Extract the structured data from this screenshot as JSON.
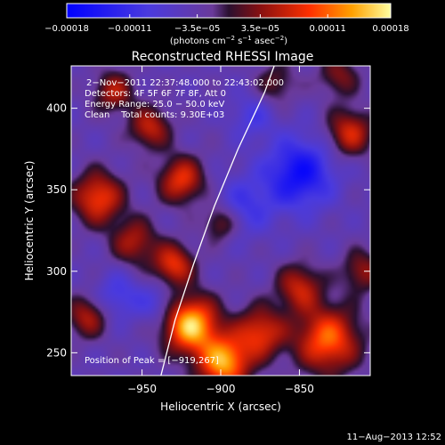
{
  "chart_data": {
    "type": "heatmap",
    "title": "Reconstructed RHESSI Image",
    "xlabel": "Heliocentric X (arcsec)",
    "ylabel": "Heliocentric Y (arcsec)",
    "xlim": [
      -995,
      -805
    ],
    "ylim": [
      236,
      426
    ],
    "x_ticks": [
      -950,
      -900,
      -850
    ],
    "x_tick_labels": [
      "−950",
      "−900",
      "−850"
    ],
    "y_ticks": [
      250,
      300,
      350,
      400
    ],
    "y_tick_labels": [
      "250",
      "300",
      "350",
      "400"
    ],
    "colorbar": {
      "min": -0.00018,
      "max": 0.00018,
      "ticks": [
        -0.00018,
        -0.00011,
        -3.5e-05,
        3.5e-05,
        0.00011,
        0.00018
      ],
      "tick_labels": [
        "−0.00018",
        "−0.00011",
        "−3.5e−05",
        "3.5e−05",
        "0.00011",
        "0.00018"
      ],
      "units_pre": "(photons cm",
      "units_sup1": "−2",
      "units_mid1": " s",
      "units_sup2": "−1",
      "units_mid2": " asec",
      "units_sup3": "−2",
      "units_post": ")"
    },
    "annotations": [
      "2−Nov−2011 22:37:48.000 to 22:43:02.000",
      "Detectors: 4F 5F 6F 7F 8F, Att 0",
      "Energy Range: 25.0 − 50.0 keV",
      "Clean    Total counts: 9.30E+03"
    ],
    "peak_label": "Position of Peak = [−919,267]",
    "peak": [
      -919,
      267
    ],
    "sources": [
      {
        "x": -919,
        "y": 267,
        "amp": 0.0002,
        "w": 12
      },
      {
        "x": -898,
        "y": 244,
        "amp": 0.00018,
        "w": 11
      },
      {
        "x": -832,
        "y": 258,
        "amp": 0.00015,
        "w": 14
      },
      {
        "x": -875,
        "y": 262,
        "amp": 0.00012,
        "w": 11
      },
      {
        "x": -850,
        "y": 290,
        "amp": 0.0001,
        "w": 10
      },
      {
        "x": -930,
        "y": 304,
        "amp": 0.00012,
        "w": 9
      },
      {
        "x": -955,
        "y": 318,
        "amp": 9e-05,
        "w": 10
      },
      {
        "x": -978,
        "y": 345,
        "amp": 0.00013,
        "w": 11
      },
      {
        "x": -925,
        "y": 356,
        "amp": 0.00012,
        "w": 10
      },
      {
        "x": -945,
        "y": 388,
        "amp": 0.0001,
        "w": 9
      },
      {
        "x": -968,
        "y": 410,
        "amp": 9e-05,
        "w": 9
      },
      {
        "x": -900,
        "y": 330,
        "amp": 8e-05,
        "w": 8
      },
      {
        "x": -818,
        "y": 385,
        "amp": 0.00011,
        "w": 10
      },
      {
        "x": -825,
        "y": 420,
        "amp": 7e-05,
        "w": 9
      },
      {
        "x": -865,
        "y": 415,
        "amp": 6e-05,
        "w": 9
      },
      {
        "x": -985,
        "y": 272,
        "amp": 9e-05,
        "w": 9
      },
      {
        "x": -810,
        "y": 300,
        "amp": 8e-05,
        "w": 9
      },
      {
        "x": -850,
        "y": 360,
        "amp": -0.00012,
        "w": 15
      },
      {
        "x": -885,
        "y": 340,
        "amp": -6e-05,
        "w": 13
      },
      {
        "x": -965,
        "y": 285,
        "amp": -6e-05,
        "w": 10
      },
      {
        "x": -940,
        "y": 280,
        "amp": -5e-05,
        "w": 9
      },
      {
        "x": -880,
        "y": 395,
        "amp": -5e-05,
        "w": 10
      }
    ],
    "limb": [
      [
        -938,
        236
      ],
      [
        -929,
        270
      ],
      [
        -917,
        305
      ],
      [
        -904,
        340
      ],
      [
        -889,
        375
      ],
      [
        -872,
        410
      ],
      [
        -866,
        426
      ]
    ]
  },
  "timestamp": "11−Aug−2013 12:52"
}
